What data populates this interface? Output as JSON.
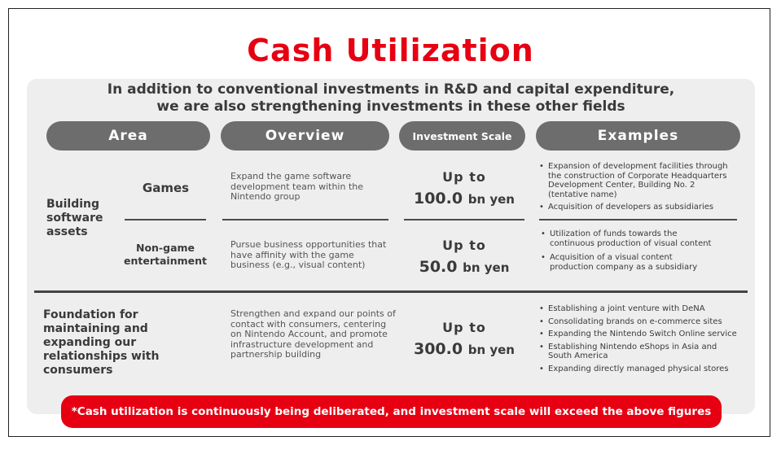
{
  "title": "Cash Utilization",
  "subtitle": {
    "line1": "In addition to conventional investments in R&D and capital expenditure,",
    "line2": "we are also strengthening investments in these other fields"
  },
  "headers": {
    "area": "Area",
    "overview": "Overview",
    "scale": "Investment Scale",
    "examples": "Examples"
  },
  "software": {
    "area_line1": "Building",
    "area_line2": "software",
    "area_line3": "assets",
    "games": {
      "label": "Games",
      "overview": "Expand the game software development team within the Nintendo group",
      "scale_prefix": "Up to",
      "scale_value": "100.0",
      "scale_unit": "bn yen",
      "examples": [
        "Expansion of development facilities through the construction of Corporate Headquarters Development Center, Building No. 2 (tentative name)",
        "Acquisition of developers as subsidiaries"
      ]
    },
    "nongame": {
      "label_line1": "Non-game",
      "label_line2": "entertainment",
      "overview": "Pursue business opportunities that have affinity with the game business (e.g., visual content)",
      "scale_prefix": "Up to",
      "scale_value": "50.0",
      "scale_unit": "bn yen",
      "examples": [
        "Utilization of funds towards the continuous production of visual content",
        "Acquisition of a visual content production company as a subsidiary"
      ]
    }
  },
  "foundation": {
    "area_line1": "Foundation for",
    "area_line2": "maintaining and",
    "area_line3": "expanding our",
    "area_line4": "relationships with",
    "area_line5": "consumers",
    "overview": "Strengthen and expand our points of contact with consumers, centering on Nintendo Account, and promote infrastructure development and partnership building",
    "scale_prefix": "Up to",
    "scale_value": "300.0",
    "scale_unit": "bn yen",
    "examples": [
      "Establishing a joint venture with DeNA",
      "Consolidating brands on e-commerce sites",
      "Expanding the Nintendo Switch Online service",
      "Establishing Nintendo eShops in Asia and South America",
      "Expanding directly managed physical stores"
    ]
  },
  "footer": "*Cash utilization is continuously being deliberated, and investment scale will exceed the above figures",
  "colors": {
    "accent": "#e60012",
    "header_pill": "#6d6d6d",
    "panel": "#eeeeee"
  }
}
